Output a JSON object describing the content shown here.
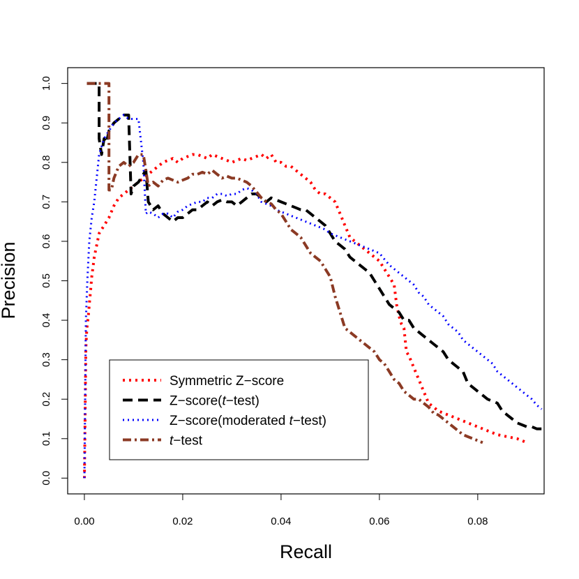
{
  "chart_data": {
    "type": "line",
    "title": "",
    "xlabel": "Recall",
    "ylabel": "Precision",
    "xlim": [
      -0.0034,
      0.0935
    ],
    "ylim": [
      -0.04,
      1.04
    ],
    "x_ticks": [
      0.0,
      0.02,
      0.04,
      0.06,
      0.08
    ],
    "x_tick_labels": [
      "0.00",
      "0.02",
      "0.04",
      "0.06",
      "0.08"
    ],
    "y_ticks": [
      0.0,
      0.1,
      0.2,
      0.3,
      0.4,
      0.5,
      0.6,
      0.7,
      0.8,
      0.9,
      1.0
    ],
    "y_tick_labels": [
      "0.0",
      "0.1",
      "0.2",
      "0.3",
      "0.4",
      "0.5",
      "0.6",
      "0.7",
      "0.8",
      "0.9",
      "1.0"
    ],
    "grid": false,
    "legend_position": "bottom-left",
    "series": [
      {
        "name": "Symmetric Z−score",
        "legend": [
          {
            "text": "Symmetric Z−score",
            "italic": false
          }
        ],
        "color": "#ff0000",
        "dash": "3 6",
        "width": 4,
        "x": [
          0.0,
          0.0003,
          0.0005,
          0.0008,
          0.001,
          0.0013,
          0.0015,
          0.0018,
          0.002,
          0.0025,
          0.003,
          0.0035,
          0.004,
          0.005,
          0.006,
          0.007,
          0.008,
          0.009,
          0.01,
          0.011,
          0.012,
          0.013,
          0.014,
          0.015,
          0.016,
          0.017,
          0.018,
          0.019,
          0.02,
          0.021,
          0.022,
          0.023,
          0.024,
          0.025,
          0.026,
          0.027,
          0.028,
          0.029,
          0.03,
          0.031,
          0.032,
          0.033,
          0.034,
          0.035,
          0.036,
          0.037,
          0.038,
          0.039,
          0.04,
          0.041,
          0.042,
          0.043,
          0.044,
          0.045,
          0.046,
          0.047,
          0.048,
          0.049,
          0.05,
          0.051,
          0.052,
          0.053,
          0.054,
          0.055,
          0.056,
          0.057,
          0.058,
          0.059,
          0.06,
          0.061,
          0.062,
          0.063,
          0.0635,
          0.064,
          0.0645,
          0.065,
          0.0655,
          0.066,
          0.067,
          0.068,
          0.069,
          0.07,
          0.072,
          0.074,
          0.076,
          0.078,
          0.08,
          0.082,
          0.084,
          0.086,
          0.088,
          0.09
        ],
        "y": [
          0.0,
          0.33,
          0.38,
          0.41,
          0.44,
          0.48,
          0.51,
          0.54,
          0.56,
          0.59,
          0.62,
          0.63,
          0.64,
          0.66,
          0.69,
          0.71,
          0.72,
          0.73,
          0.74,
          0.75,
          0.76,
          0.77,
          0.78,
          0.79,
          0.8,
          0.805,
          0.81,
          0.8,
          0.81,
          0.815,
          0.82,
          0.82,
          0.815,
          0.81,
          0.82,
          0.815,
          0.81,
          0.805,
          0.8,
          0.805,
          0.81,
          0.805,
          0.81,
          0.815,
          0.82,
          0.81,
          0.82,
          0.8,
          0.8,
          0.79,
          0.79,
          0.78,
          0.77,
          0.76,
          0.75,
          0.73,
          0.72,
          0.72,
          0.71,
          0.7,
          0.67,
          0.64,
          0.61,
          0.6,
          0.59,
          0.58,
          0.57,
          0.56,
          0.55,
          0.53,
          0.51,
          0.49,
          0.44,
          0.41,
          0.39,
          0.38,
          0.32,
          0.31,
          0.28,
          0.25,
          0.22,
          0.19,
          0.17,
          0.16,
          0.15,
          0.14,
          0.13,
          0.12,
          0.11,
          0.105,
          0.1,
          0.09
        ]
      },
      {
        "name": "Z−score(t−test)",
        "legend": [
          {
            "text": "Z−score(",
            "italic": false
          },
          {
            "text": "t",
            "italic": true
          },
          {
            "text": "−test)",
            "italic": false
          }
        ],
        "color": "#000000",
        "dash": "14 8",
        "width": 4,
        "x": [
          0.0005,
          0.0008,
          0.001,
          0.0015,
          0.002,
          0.0025,
          0.003,
          0.003,
          0.0035,
          0.004,
          0.0045,
          0.005,
          0.006,
          0.007,
          0.008,
          0.009,
          0.0095,
          0.01,
          0.011,
          0.012,
          0.0125,
          0.013,
          0.014,
          0.015,
          0.016,
          0.017,
          0.018,
          0.019,
          0.02,
          0.021,
          0.022,
          0.023,
          0.024,
          0.025,
          0.026,
          0.027,
          0.028,
          0.029,
          0.03,
          0.031,
          0.032,
          0.033,
          0.034,
          0.035,
          0.036,
          0.037,
          0.038,
          0.039,
          0.04,
          0.041,
          0.042,
          0.043,
          0.044,
          0.045,
          0.046,
          0.047,
          0.048,
          0.049,
          0.05,
          0.051,
          0.052,
          0.053,
          0.054,
          0.055,
          0.056,
          0.057,
          0.058,
          0.059,
          0.06,
          0.061,
          0.062,
          0.063,
          0.064,
          0.065,
          0.066,
          0.067,
          0.068,
          0.069,
          0.07,
          0.071,
          0.072,
          0.073,
          0.074,
          0.075,
          0.076,
          0.077,
          0.078,
          0.079,
          0.08,
          0.081,
          0.082,
          0.083,
          0.084,
          0.085,
          0.086,
          0.087,
          0.088,
          0.089,
          0.09,
          0.091,
          0.092,
          0.0935
        ],
        "y": [
          1.0,
          1.0,
          1.0,
          1.0,
          1.0,
          1.0,
          1.0,
          0.86,
          0.82,
          0.86,
          0.85,
          0.88,
          0.9,
          0.91,
          0.92,
          0.92,
          0.72,
          0.74,
          0.75,
          0.77,
          0.78,
          0.7,
          0.68,
          0.69,
          0.67,
          0.66,
          0.65,
          0.66,
          0.66,
          0.67,
          0.68,
          0.68,
          0.69,
          0.7,
          0.69,
          0.7,
          0.705,
          0.7,
          0.7,
          0.69,
          0.7,
          0.71,
          0.72,
          0.72,
          0.71,
          0.7,
          0.71,
          0.705,
          0.7,
          0.695,
          0.69,
          0.685,
          0.68,
          0.68,
          0.67,
          0.66,
          0.65,
          0.64,
          0.62,
          0.6,
          0.59,
          0.58,
          0.56,
          0.55,
          0.54,
          0.53,
          0.52,
          0.5,
          0.48,
          0.46,
          0.44,
          0.43,
          0.42,
          0.4,
          0.4,
          0.38,
          0.37,
          0.36,
          0.35,
          0.34,
          0.33,
          0.32,
          0.3,
          0.29,
          0.28,
          0.27,
          0.24,
          0.23,
          0.22,
          0.21,
          0.2,
          0.195,
          0.19,
          0.17,
          0.16,
          0.15,
          0.14,
          0.135,
          0.13,
          0.13,
          0.125,
          0.125
        ]
      },
      {
        "name": "Z−score(moderated t−test)",
        "legend": [
          {
            "text": "Z−score(moderated ",
            "italic": false
          },
          {
            "text": "t",
            "italic": true
          },
          {
            "text": "−test)",
            "italic": false
          }
        ],
        "color": "#0000ff",
        "dash": "2 5",
        "width": 3,
        "x": [
          0.0,
          0.0003,
          0.0006,
          0.001,
          0.0015,
          0.002,
          0.0025,
          0.003,
          0.004,
          0.005,
          0.006,
          0.007,
          0.008,
          0.009,
          0.01,
          0.011,
          0.012,
          0.0125,
          0.013,
          0.014,
          0.015,
          0.016,
          0.017,
          0.018,
          0.019,
          0.02,
          0.021,
          0.022,
          0.023,
          0.024,
          0.025,
          0.026,
          0.027,
          0.028,
          0.029,
          0.03,
          0.031,
          0.032,
          0.033,
          0.034,
          0.035,
          0.036,
          0.037,
          0.038,
          0.039,
          0.04,
          0.041,
          0.042,
          0.043,
          0.044,
          0.045,
          0.046,
          0.047,
          0.048,
          0.049,
          0.05,
          0.052,
          0.054,
          0.056,
          0.058,
          0.06,
          0.061,
          0.062,
          0.063,
          0.064,
          0.065,
          0.066,
          0.067,
          0.068,
          0.069,
          0.07,
          0.071,
          0.072,
          0.073,
          0.074,
          0.075,
          0.076,
          0.077,
          0.078,
          0.079,
          0.08,
          0.081,
          0.082,
          0.083,
          0.084,
          0.085,
          0.086,
          0.087,
          0.088,
          0.089,
          0.09,
          0.091,
          0.092,
          0.093
        ],
        "y": [
          0.0,
          0.4,
          0.5,
          0.6,
          0.66,
          0.7,
          0.76,
          0.82,
          0.86,
          0.88,
          0.9,
          0.91,
          0.92,
          0.91,
          0.91,
          0.91,
          0.8,
          0.67,
          0.675,
          0.67,
          0.66,
          0.67,
          0.67,
          0.66,
          0.675,
          0.68,
          0.69,
          0.695,
          0.7,
          0.7,
          0.71,
          0.71,
          0.72,
          0.72,
          0.715,
          0.72,
          0.72,
          0.73,
          0.735,
          0.73,
          0.72,
          0.7,
          0.695,
          0.69,
          0.68,
          0.675,
          0.67,
          0.665,
          0.66,
          0.655,
          0.65,
          0.645,
          0.64,
          0.635,
          0.63,
          0.62,
          0.61,
          0.6,
          0.59,
          0.58,
          0.57,
          0.555,
          0.54,
          0.53,
          0.52,
          0.51,
          0.5,
          0.49,
          0.47,
          0.46,
          0.44,
          0.43,
          0.42,
          0.41,
          0.39,
          0.38,
          0.37,
          0.35,
          0.34,
          0.33,
          0.32,
          0.31,
          0.3,
          0.29,
          0.27,
          0.26,
          0.25,
          0.24,
          0.23,
          0.22,
          0.21,
          0.2,
          0.185,
          0.175
        ]
      },
      {
        "name": "t−test",
        "legend": [
          {
            "text": "t",
            "italic": true
          },
          {
            "text": "−test",
            "italic": false
          }
        ],
        "color": "#8b3a24",
        "dash": "12 5 3 5",
        "width": 4,
        "x": [
          0.0005,
          0.001,
          0.002,
          0.003,
          0.004,
          0.0045,
          0.005,
          0.005,
          0.0055,
          0.006,
          0.007,
          0.008,
          0.009,
          0.01,
          0.011,
          0.012,
          0.0125,
          0.013,
          0.014,
          0.015,
          0.016,
          0.017,
          0.018,
          0.019,
          0.02,
          0.021,
          0.022,
          0.023,
          0.024,
          0.025,
          0.026,
          0.027,
          0.028,
          0.029,
          0.03,
          0.031,
          0.032,
          0.033,
          0.034,
          0.035,
          0.036,
          0.037,
          0.038,
          0.039,
          0.04,
          0.041,
          0.042,
          0.043,
          0.044,
          0.045,
          0.046,
          0.047,
          0.048,
          0.049,
          0.05,
          0.051,
          0.052,
          0.053,
          0.054,
          0.055,
          0.056,
          0.057,
          0.058,
          0.059,
          0.06,
          0.061,
          0.062,
          0.063,
          0.064,
          0.065,
          0.066,
          0.067,
          0.068,
          0.069,
          0.07,
          0.071,
          0.072,
          0.073,
          0.074,
          0.075,
          0.076,
          0.077,
          0.078,
          0.079,
          0.08,
          0.081
        ],
        "y": [
          1.0,
          1.0,
          1.0,
          1.0,
          1.0,
          1.0,
          1.0,
          0.73,
          0.73,
          0.76,
          0.79,
          0.8,
          0.79,
          0.8,
          0.82,
          0.82,
          0.78,
          0.74,
          0.75,
          0.74,
          0.755,
          0.76,
          0.755,
          0.75,
          0.755,
          0.76,
          0.77,
          0.77,
          0.775,
          0.77,
          0.78,
          0.77,
          0.76,
          0.765,
          0.76,
          0.76,
          0.755,
          0.75,
          0.74,
          0.725,
          0.71,
          0.7,
          0.695,
          0.68,
          0.67,
          0.65,
          0.63,
          0.62,
          0.61,
          0.59,
          0.57,
          0.56,
          0.55,
          0.53,
          0.51,
          0.46,
          0.42,
          0.38,
          0.37,
          0.36,
          0.35,
          0.34,
          0.33,
          0.32,
          0.3,
          0.29,
          0.27,
          0.25,
          0.24,
          0.22,
          0.21,
          0.2,
          0.2,
          0.19,
          0.18,
          0.165,
          0.16,
          0.15,
          0.14,
          0.13,
          0.12,
          0.11,
          0.105,
          0.1,
          0.095,
          0.09
        ]
      }
    ]
  }
}
